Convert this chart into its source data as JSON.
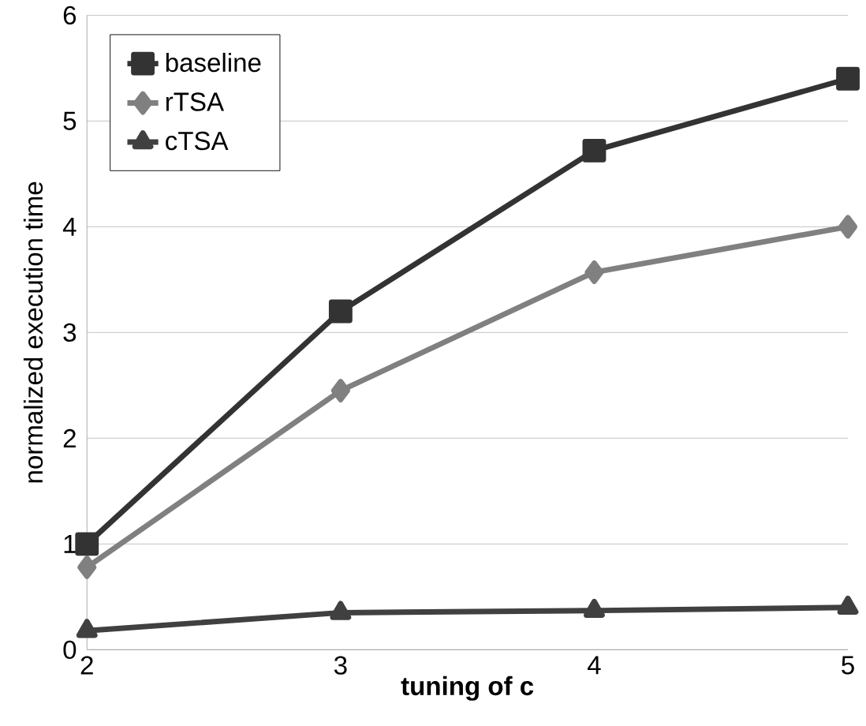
{
  "chart_data": {
    "type": "line",
    "xlabel": "tuning of c",
    "ylabel": "normalized execution time",
    "x": [
      2,
      3,
      4,
      5
    ],
    "series": [
      {
        "name": "baseline",
        "color": "#333333",
        "marker": "square",
        "values": [
          1.0,
          3.2,
          4.72,
          5.4
        ]
      },
      {
        "name": "rTSA",
        "color": "#808080",
        "marker": "diamond",
        "values": [
          0.78,
          2.45,
          3.57,
          4.0
        ]
      },
      {
        "name": "cTSA",
        "color": "#404040",
        "marker": "triangle",
        "values": [
          0.18,
          0.35,
          0.37,
          0.4
        ]
      }
    ],
    "xlim": [
      2,
      5
    ],
    "xticks": [
      2,
      3,
      4,
      5
    ],
    "ylim": [
      0,
      6
    ],
    "yticks": [
      0,
      1,
      2,
      3,
      4,
      5,
      6
    ],
    "grid": "y",
    "legend": "top left",
    "line_style": "solid"
  }
}
